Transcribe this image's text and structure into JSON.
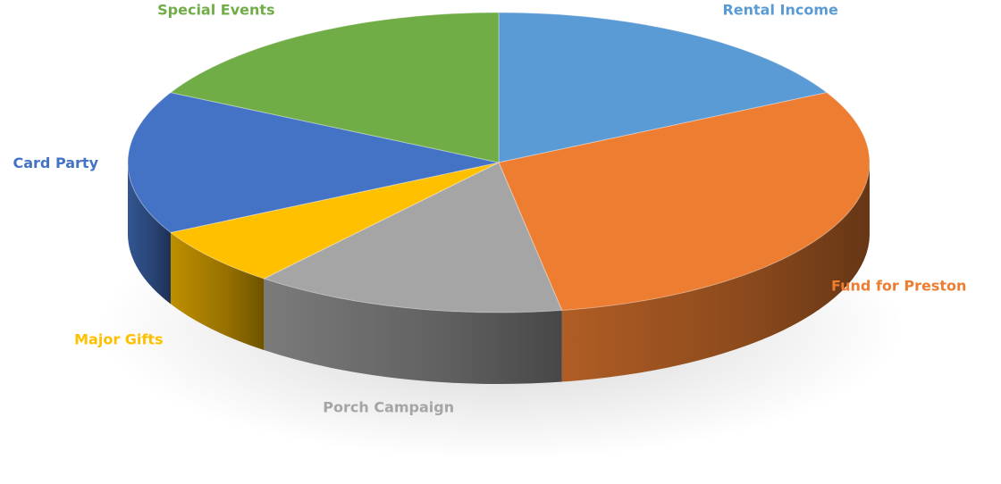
{
  "chart_data": {
    "type": "pie",
    "title": "",
    "style": "3d",
    "legend": "none",
    "categories": [
      "Rental Income",
      "Fund for Preston",
      "Porch Campaign",
      "Major Gifts",
      "Card Party",
      "Special Events"
    ],
    "values": [
      19,
      33,
      15,
      7,
      17,
      19
    ],
    "unit": "percent",
    "start_angle_deg": 0,
    "direction": "clockwise",
    "colors": [
      "#5b9bd5",
      "#ed7d31",
      "#a5a5a5",
      "#ffc000",
      "#4472c4",
      "#70ad47"
    ],
    "label_colors": [
      "#5b9bd5",
      "#ed7d31",
      "#a5a5a5",
      "#ffc000",
      "#4472c4",
      "#70ad47"
    ]
  }
}
